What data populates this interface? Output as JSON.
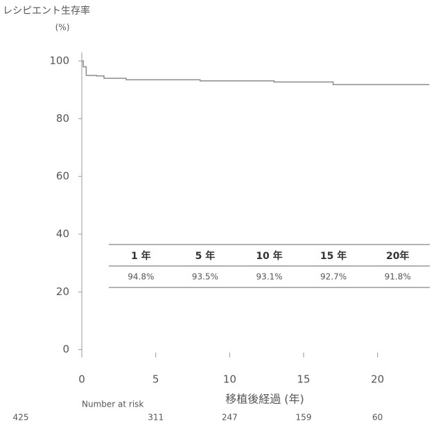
{
  "chart_data": {
    "type": "line",
    "step": true,
    "y_axis_label": "レシピエント生存率",
    "y_axis_unit": "(%)",
    "x_axis_label": "移植後経過 (年)",
    "xlim": [
      0,
      24
    ],
    "ylim": [
      -2,
      103
    ],
    "xticks": [
      0,
      5,
      10,
      15,
      20
    ],
    "yticks": [
      0,
      20,
      40,
      60,
      80,
      100
    ],
    "series": [
      {
        "color": "#8a8a8a",
        "x": [
          0,
          0.1,
          0.3,
          1,
          1.5,
          3,
          8,
          13,
          17,
          23.5
        ],
        "values": [
          100,
          98,
          95,
          94.8,
          94,
          93.5,
          93.1,
          92.7,
          91.8,
          91.8
        ]
      }
    ],
    "survival_table": {
      "headers": [
        "1 年",
        "5 年",
        "10 年",
        "15 年",
        "20年"
      ],
      "cells": [
        "94.8%",
        "93.5%",
        "93.1%",
        "92.7%",
        "91.8%"
      ]
    },
    "number_at_risk": {
      "label": "Number at risk",
      "times": [
        0,
        5,
        10,
        15,
        20
      ],
      "values": [
        425,
        311,
        247,
        159,
        60
      ]
    }
  }
}
